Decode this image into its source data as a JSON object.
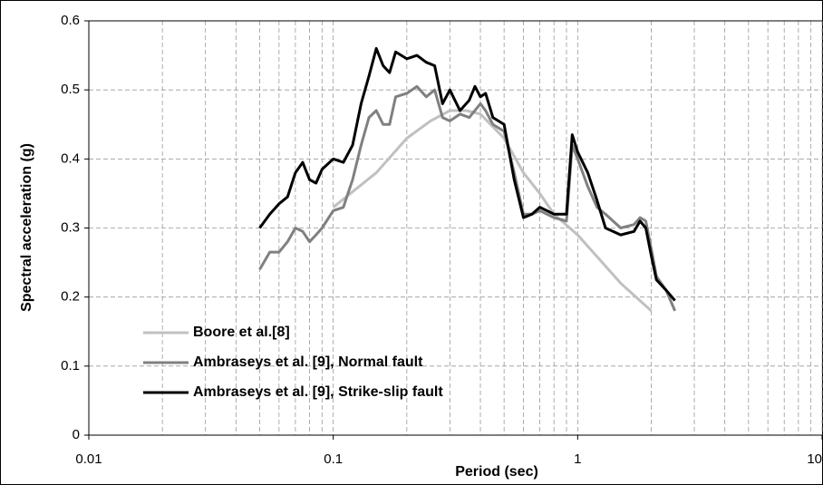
{
  "chart_data": {
    "type": "line",
    "xlabel": "Period (sec)",
    "ylabel": "Spectral acceleration (g)",
    "xscale": "log",
    "xlim": [
      0.01,
      10
    ],
    "xticks": [
      0.01,
      0.1,
      1,
      10
    ],
    "xminorticks": [
      0.02,
      0.03,
      0.04,
      0.05,
      0.06,
      0.07,
      0.08,
      0.09,
      0.2,
      0.3,
      0.4,
      0.5,
      0.6,
      0.7,
      0.8,
      0.9,
      2,
      3,
      4,
      5,
      6,
      7,
      8,
      9
    ],
    "ylim": [
      0,
      0.6
    ],
    "yticks": [
      0,
      0.1,
      0.2,
      0.3,
      0.4,
      0.5,
      0.6
    ],
    "grid": true,
    "legend": "lower left",
    "series": [
      {
        "name": "Boore et al.[8]",
        "color": "#c0c0c0",
        "x": [
          0.1,
          0.15,
          0.2,
          0.25,
          0.3,
          0.35,
          0.4,
          0.5,
          0.6,
          0.7,
          0.8,
          1.0,
          1.5,
          2.0
        ],
        "values": [
          0.33,
          0.38,
          0.43,
          0.455,
          0.47,
          0.47,
          0.465,
          0.43,
          0.38,
          0.35,
          0.32,
          0.29,
          0.22,
          0.18
        ]
      },
      {
        "name": "Ambraseys et al. [9], Normal fault",
        "color": "#808080",
        "x": [
          0.05,
          0.055,
          0.06,
          0.065,
          0.07,
          0.075,
          0.08,
          0.085,
          0.09,
          0.1,
          0.11,
          0.12,
          0.13,
          0.14,
          0.15,
          0.16,
          0.17,
          0.18,
          0.2,
          0.22,
          0.24,
          0.26,
          0.28,
          0.3,
          0.33,
          0.36,
          0.4,
          0.42,
          0.45,
          0.5,
          0.55,
          0.6,
          0.65,
          0.7,
          0.8,
          0.9,
          0.95,
          1.0,
          1.1,
          1.2,
          1.3,
          1.5,
          1.7,
          1.8,
          1.9,
          2.0,
          2.1,
          2.3,
          2.5
        ],
        "values": [
          0.24,
          0.265,
          0.265,
          0.28,
          0.3,
          0.295,
          0.28,
          0.29,
          0.3,
          0.325,
          0.33,
          0.37,
          0.42,
          0.46,
          0.47,
          0.45,
          0.45,
          0.49,
          0.495,
          0.505,
          0.49,
          0.5,
          0.46,
          0.455,
          0.465,
          0.46,
          0.48,
          0.47,
          0.45,
          0.44,
          0.38,
          0.32,
          0.32,
          0.325,
          0.315,
          0.31,
          0.42,
          0.4,
          0.36,
          0.33,
          0.32,
          0.3,
          0.305,
          0.315,
          0.31,
          0.27,
          0.23,
          0.21,
          0.18
        ]
      },
      {
        "name": "Ambraseys et al. [9], Strike-slip fault",
        "color": "#000000",
        "x": [
          0.05,
          0.055,
          0.06,
          0.065,
          0.07,
          0.075,
          0.08,
          0.085,
          0.09,
          0.1,
          0.11,
          0.12,
          0.13,
          0.14,
          0.15,
          0.16,
          0.17,
          0.18,
          0.2,
          0.22,
          0.24,
          0.26,
          0.28,
          0.3,
          0.33,
          0.36,
          0.38,
          0.4,
          0.42,
          0.45,
          0.5,
          0.55,
          0.6,
          0.65,
          0.7,
          0.8,
          0.9,
          0.95,
          1.0,
          1.1,
          1.2,
          1.3,
          1.5,
          1.7,
          1.8,
          1.9,
          2.0,
          2.1,
          2.3,
          2.5
        ],
        "values": [
          0.3,
          0.32,
          0.335,
          0.345,
          0.38,
          0.395,
          0.37,
          0.365,
          0.385,
          0.4,
          0.395,
          0.42,
          0.48,
          0.52,
          0.56,
          0.535,
          0.525,
          0.555,
          0.545,
          0.55,
          0.54,
          0.535,
          0.48,
          0.5,
          0.47,
          0.485,
          0.505,
          0.49,
          0.495,
          0.46,
          0.45,
          0.37,
          0.315,
          0.32,
          0.33,
          0.32,
          0.32,
          0.435,
          0.41,
          0.38,
          0.34,
          0.3,
          0.29,
          0.295,
          0.31,
          0.3,
          0.26,
          0.225,
          0.21,
          0.195
        ]
      }
    ]
  }
}
